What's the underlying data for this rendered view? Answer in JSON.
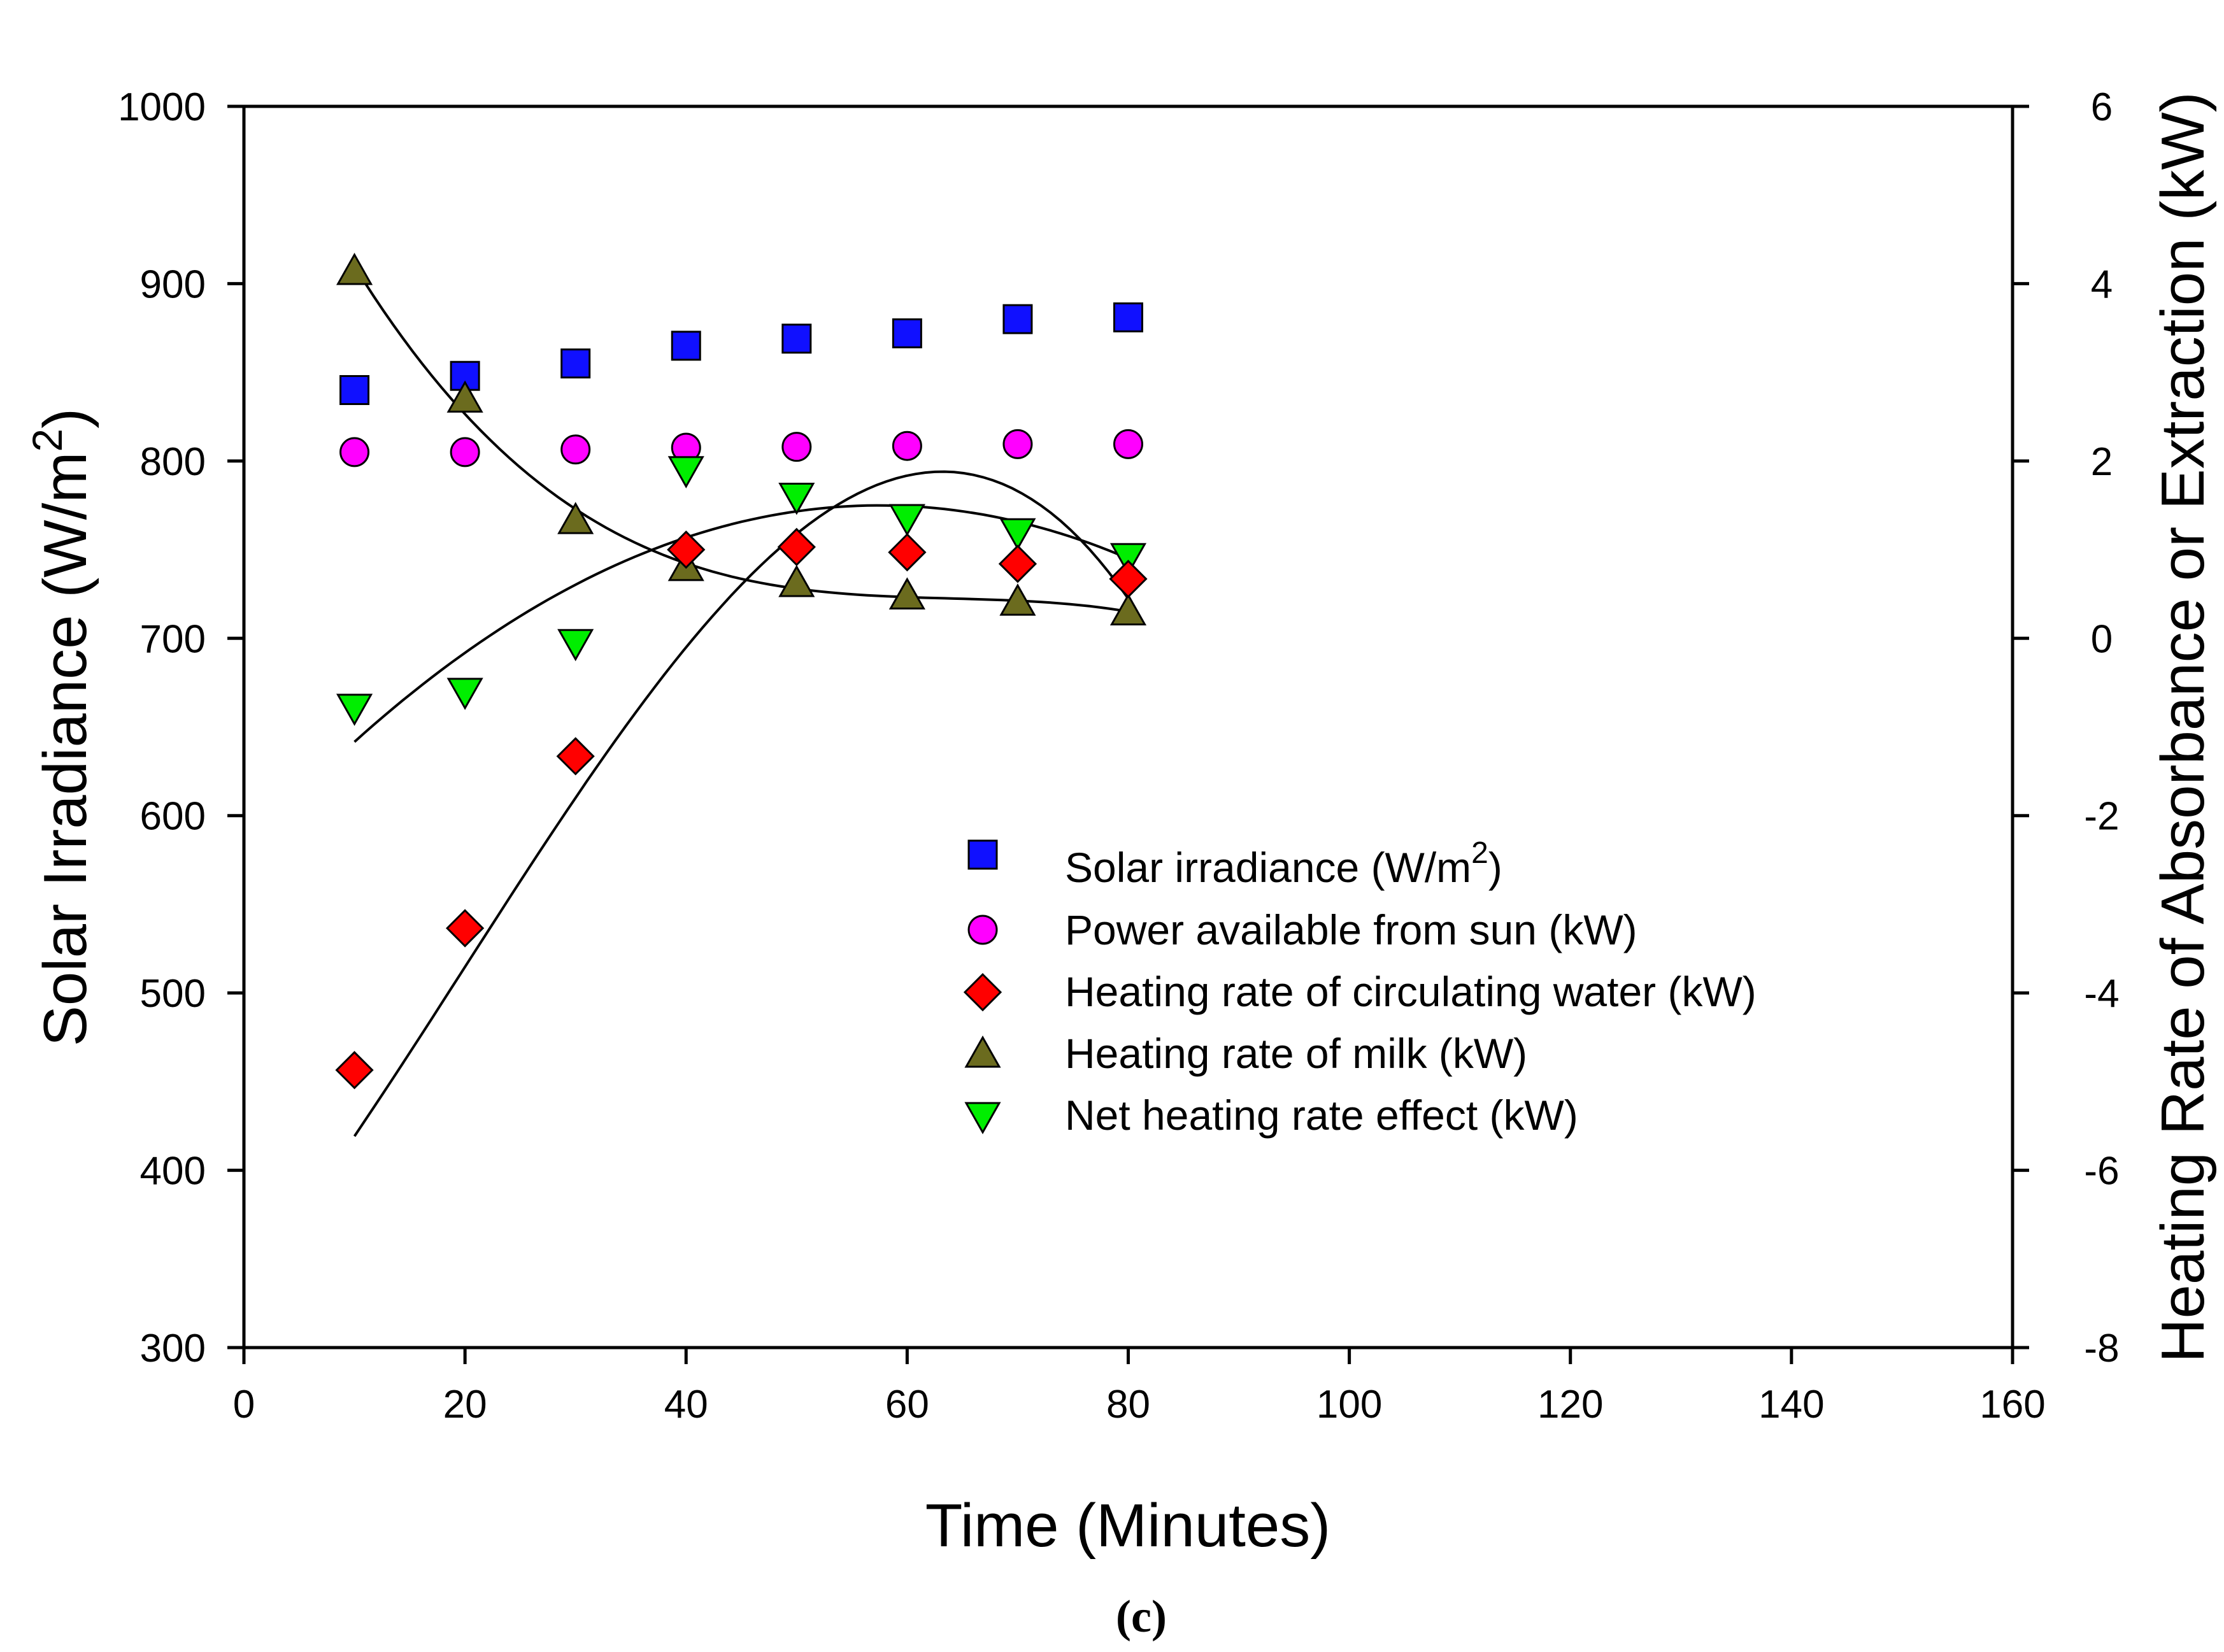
{
  "chart_data": {
    "type": "scatter",
    "caption": "(c)",
    "xlabel": "Time (Minutes)",
    "ylabel": {
      "prefix": "Solar Irradiance (W/m",
      "sup": "2",
      "suffix": ")"
    },
    "y2label": "Heating Rate of Absorbance or Extraction (kW)",
    "xlim": [
      0,
      160
    ],
    "ylim": [
      300,
      1000
    ],
    "y2lim": [
      -8,
      6
    ],
    "x_ticks": [
      0,
      20,
      40,
      60,
      80,
      100,
      120,
      140,
      160
    ],
    "y_ticks": [
      300,
      400,
      500,
      600,
      700,
      800,
      900,
      1000
    ],
    "y2_ticks": [
      -8,
      -6,
      -4,
      -2,
      0,
      2,
      4,
      6
    ],
    "x": [
      10,
      20,
      30,
      40,
      50,
      60,
      70,
      80
    ],
    "series": [
      {
        "name": "Solar irradiance (W/m",
        "name_sup": "2",
        "name_suffix": ")",
        "axis": "left",
        "marker": "square",
        "color": "#1010ff",
        "values": [
          840,
          848,
          855,
          865,
          869,
          872,
          880,
          881
        ]
      },
      {
        "name": "Power available from sun (kW)",
        "axis": "right",
        "marker": "circle",
        "color": "#ff00ff",
        "values": [
          2.1,
          2.1,
          2.13,
          2.15,
          2.16,
          2.17,
          2.19,
          2.19
        ]
      },
      {
        "name": "Heating rate of circulating water (kW)",
        "axis": "right",
        "marker": "diamond",
        "color": "#ff0000",
        "values": [
          -4.87,
          -3.27,
          -1.33,
          1.0,
          1.03,
          0.97,
          0.84,
          0.67
        ],
        "fit": [
          -5.2,
          -5.0,
          -4.4,
          -3.6,
          -2.8,
          -1.2,
          0.0,
          1.0,
          1.45,
          1.55,
          1.3,
          0.6
        ]
      },
      {
        "name": "Heating rate of milk (kW)",
        "axis": "right",
        "marker": "triangle-up",
        "color": "#6b6b1e",
        "values": [
          4.14,
          2.7,
          1.33,
          0.8,
          0.62,
          0.48,
          0.41,
          0.3
        ]
      },
      {
        "name": "Net heating rate effect (kW)",
        "axis": "right",
        "marker": "triangle-down",
        "color": "#00ee00",
        "values": [
          -0.78,
          -0.6,
          -0.05,
          1.9,
          1.6,
          1.36,
          1.2,
          0.92
        ]
      }
    ]
  }
}
